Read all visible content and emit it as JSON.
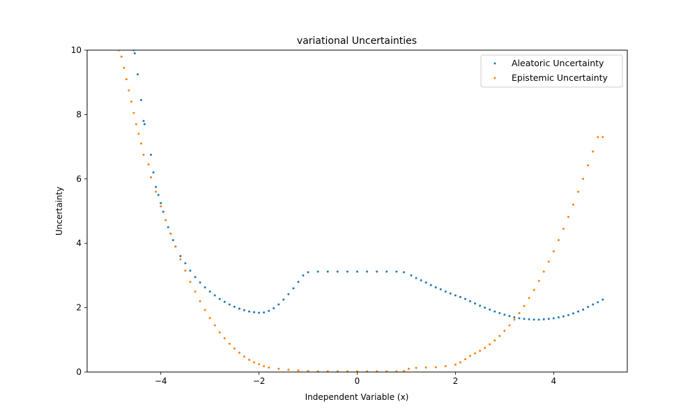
{
  "chart_data": {
    "type": "scatter",
    "title": "variational Uncertainties",
    "xlabel": "Independent Variable (x)",
    "ylabel": "Uncertainty",
    "xlim": [
      -5.5,
      5.5
    ],
    "ylim": [
      0,
      10
    ],
    "xticks": [
      -4,
      -2,
      0,
      2,
      4
    ],
    "yticks": [
      0,
      2,
      4,
      6,
      8,
      10
    ],
    "xtick_labels": [
      "−4",
      "−2",
      "0",
      "2",
      "4"
    ],
    "ytick_labels": [
      "0",
      "2",
      "4",
      "6",
      "8",
      "10"
    ],
    "grid": false,
    "legend_position": "upper right",
    "series": [
      {
        "name": "Aleatoric Uncertainty",
        "color": "#1f77b4",
        "points": [
          [
            -4.55,
            10.0
          ],
          [
            -4.53,
            9.9
          ],
          [
            -4.47,
            9.25
          ],
          [
            -4.4,
            8.45
          ],
          [
            -4.35,
            7.8
          ],
          [
            -4.33,
            7.7
          ],
          [
            -4.2,
            6.75
          ],
          [
            -4.15,
            6.2
          ],
          [
            -4.1,
            5.75
          ],
          [
            -4.05,
            5.5
          ],
          [
            -4.0,
            5.25
          ],
          [
            -3.95,
            4.98
          ],
          [
            -3.9,
            4.72
          ],
          [
            -3.85,
            4.5
          ],
          [
            -3.8,
            4.3
          ],
          [
            -3.75,
            4.1
          ],
          [
            -3.7,
            3.9
          ],
          [
            -3.6,
            3.6
          ],
          [
            -3.5,
            3.38
          ],
          [
            -3.4,
            3.15
          ],
          [
            -3.3,
            2.95
          ],
          [
            -3.2,
            2.78
          ],
          [
            -3.1,
            2.63
          ],
          [
            -3.0,
            2.5
          ],
          [
            -2.9,
            2.38
          ],
          [
            -2.8,
            2.27
          ],
          [
            -2.7,
            2.18
          ],
          [
            -2.6,
            2.1
          ],
          [
            -2.5,
            2.03
          ],
          [
            -2.4,
            1.97
          ],
          [
            -2.3,
            1.92
          ],
          [
            -2.2,
            1.88
          ],
          [
            -2.1,
            1.86
          ],
          [
            -2.0,
            1.84
          ],
          [
            -1.9,
            1.85
          ],
          [
            -1.8,
            1.9
          ],
          [
            -1.7,
            1.98
          ],
          [
            -1.6,
            2.1
          ],
          [
            -1.5,
            2.25
          ],
          [
            -1.4,
            2.42
          ],
          [
            -1.3,
            2.6
          ],
          [
            -1.2,
            2.8
          ],
          [
            -1.1,
            3.0
          ],
          [
            -1.0,
            3.1
          ],
          [
            -0.8,
            3.12
          ],
          [
            -0.6,
            3.12
          ],
          [
            -0.4,
            3.12
          ],
          [
            -0.2,
            3.12
          ],
          [
            0.0,
            3.12
          ],
          [
            0.2,
            3.12
          ],
          [
            0.4,
            3.12
          ],
          [
            0.6,
            3.12
          ],
          [
            0.8,
            3.12
          ],
          [
            0.95,
            3.1
          ],
          [
            1.1,
            3.0
          ],
          [
            1.2,
            2.92
          ],
          [
            1.3,
            2.85
          ],
          [
            1.4,
            2.78
          ],
          [
            1.5,
            2.7
          ],
          [
            1.6,
            2.63
          ],
          [
            1.7,
            2.57
          ],
          [
            1.8,
            2.5
          ],
          [
            1.9,
            2.44
          ],
          [
            2.0,
            2.38
          ],
          [
            2.1,
            2.33
          ],
          [
            2.2,
            2.27
          ],
          [
            2.3,
            2.2
          ],
          [
            2.4,
            2.13
          ],
          [
            2.5,
            2.06
          ],
          [
            2.6,
            2.0
          ],
          [
            2.7,
            1.94
          ],
          [
            2.8,
            1.88
          ],
          [
            2.9,
            1.83
          ],
          [
            3.0,
            1.78
          ],
          [
            3.1,
            1.74
          ],
          [
            3.2,
            1.7
          ],
          [
            3.3,
            1.67
          ],
          [
            3.4,
            1.65
          ],
          [
            3.5,
            1.64
          ],
          [
            3.6,
            1.63
          ],
          [
            3.7,
            1.63
          ],
          [
            3.8,
            1.64
          ],
          [
            3.9,
            1.65
          ],
          [
            4.0,
            1.67
          ],
          [
            4.1,
            1.7
          ],
          [
            4.2,
            1.73
          ],
          [
            4.3,
            1.77
          ],
          [
            4.4,
            1.82
          ],
          [
            4.5,
            1.88
          ],
          [
            4.6,
            1.94
          ],
          [
            4.7,
            2.02
          ],
          [
            4.8,
            2.1
          ],
          [
            4.9,
            2.17
          ],
          [
            5.0,
            2.25
          ]
        ]
      },
      {
        "name": "Epistemic Uncertainty",
        "color": "#ff7f0e",
        "points": [
          [
            -4.85,
            10.0
          ],
          [
            -4.8,
            9.8
          ],
          [
            -4.75,
            9.45
          ],
          [
            -4.7,
            9.1
          ],
          [
            -4.65,
            8.75
          ],
          [
            -4.6,
            8.4
          ],
          [
            -4.55,
            8.05
          ],
          [
            -4.5,
            7.7
          ],
          [
            -4.45,
            7.4
          ],
          [
            -4.4,
            7.1
          ],
          [
            -4.35,
            6.75
          ],
          [
            -4.25,
            6.45
          ],
          [
            -4.2,
            6.05
          ],
          [
            -4.1,
            5.6
          ],
          [
            -4.0,
            5.15
          ],
          [
            -3.9,
            4.72
          ],
          [
            -3.8,
            4.3
          ],
          [
            -3.7,
            3.9
          ],
          [
            -3.6,
            3.5
          ],
          [
            -3.5,
            3.15
          ],
          [
            -3.4,
            2.8
          ],
          [
            -3.3,
            2.5
          ],
          [
            -3.2,
            2.2
          ],
          [
            -3.1,
            1.93
          ],
          [
            -3.0,
            1.68
          ],
          [
            -2.9,
            1.45
          ],
          [
            -2.8,
            1.23
          ],
          [
            -2.7,
            1.05
          ],
          [
            -2.6,
            0.88
          ],
          [
            -2.5,
            0.73
          ],
          [
            -2.4,
            0.6
          ],
          [
            -2.3,
            0.48
          ],
          [
            -2.2,
            0.38
          ],
          [
            -2.1,
            0.3
          ],
          [
            -2.0,
            0.24
          ],
          [
            -1.9,
            0.18
          ],
          [
            -1.8,
            0.14
          ],
          [
            -1.6,
            0.1
          ],
          [
            -1.4,
            0.07
          ],
          [
            -1.2,
            0.05
          ],
          [
            -1.0,
            0.03
          ],
          [
            -0.8,
            0.02
          ],
          [
            -0.6,
            0.02
          ],
          [
            -0.4,
            0.02
          ],
          [
            -0.2,
            0.02
          ],
          [
            0.0,
            0.02
          ],
          [
            0.2,
            0.02
          ],
          [
            0.4,
            0.02
          ],
          [
            0.6,
            0.02
          ],
          [
            0.8,
            0.02
          ],
          [
            0.95,
            0.03
          ],
          [
            1.05,
            0.1
          ],
          [
            1.2,
            0.13
          ],
          [
            1.4,
            0.14
          ],
          [
            1.6,
            0.15
          ],
          [
            1.8,
            0.18
          ],
          [
            2.0,
            0.23
          ],
          [
            2.1,
            0.3
          ],
          [
            2.2,
            0.4
          ],
          [
            2.3,
            0.5
          ],
          [
            2.4,
            0.58
          ],
          [
            2.5,
            0.66
          ],
          [
            2.6,
            0.75
          ],
          [
            2.7,
            0.86
          ],
          [
            2.8,
            0.98
          ],
          [
            2.9,
            1.12
          ],
          [
            3.0,
            1.28
          ],
          [
            3.1,
            1.45
          ],
          [
            3.2,
            1.63
          ],
          [
            3.3,
            1.83
          ],
          [
            3.4,
            2.05
          ],
          [
            3.5,
            2.3
          ],
          [
            3.6,
            2.55
          ],
          [
            3.7,
            2.83
          ],
          [
            3.8,
            3.12
          ],
          [
            3.9,
            3.43
          ],
          [
            4.0,
            3.75
          ],
          [
            4.1,
            4.1
          ],
          [
            4.2,
            4.45
          ],
          [
            4.3,
            4.82
          ],
          [
            4.4,
            5.2
          ],
          [
            4.5,
            5.6
          ],
          [
            4.6,
            6.0
          ],
          [
            4.7,
            6.42
          ],
          [
            4.8,
            6.85
          ],
          [
            4.9,
            7.3
          ],
          [
            5.0,
            7.3
          ]
        ]
      }
    ]
  }
}
